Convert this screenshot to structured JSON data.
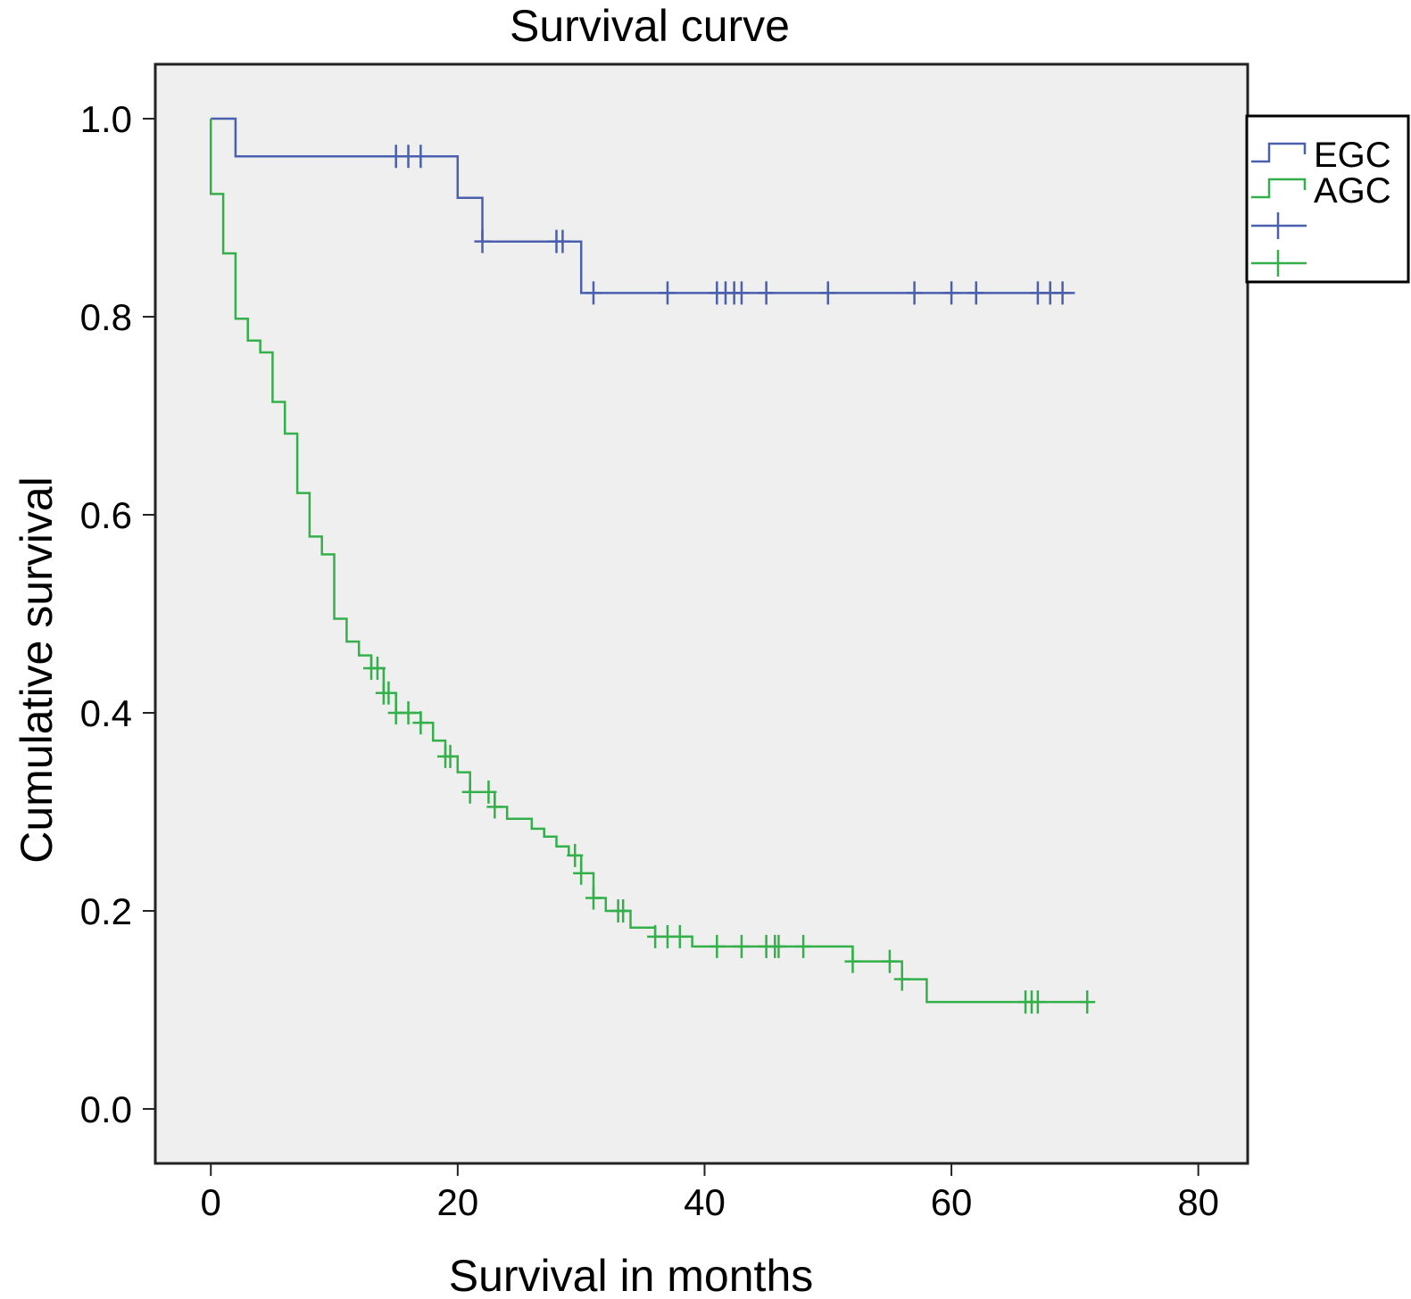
{
  "chart_data": {
    "type": "line",
    "subtype": "kaplan-meier-step",
    "title": "Survival curve",
    "xlabel": "Survival in months",
    "ylabel": "Cumulative survival",
    "xlim": [
      -4.5,
      84
    ],
    "ylim": [
      -0.055,
      1.055
    ],
    "xticks": [
      0,
      20,
      40,
      60,
      80
    ],
    "xtick_labels": [
      "0",
      "20",
      "40",
      "60",
      "80"
    ],
    "yticks": [
      0.0,
      0.2,
      0.4,
      0.6,
      0.8,
      1.0
    ],
    "ytick_labels": [
      "0.0",
      "0.2",
      "0.4",
      "0.6",
      "0.8",
      "1.0"
    ],
    "grid": false,
    "plot_background": "#efefef",
    "legend_position": "right",
    "series": [
      {
        "name": "EGC",
        "color": "#4a5fae",
        "points": [
          [
            0,
            1.0
          ],
          [
            2,
            1.0
          ],
          [
            2,
            0.962
          ],
          [
            20,
            0.962
          ],
          [
            20,
            0.92
          ],
          [
            22,
            0.92
          ],
          [
            22,
            0.876
          ],
          [
            30,
            0.876
          ],
          [
            30,
            0.824
          ],
          [
            70,
            0.824
          ]
        ],
        "censored": [
          [
            15,
            0.962
          ],
          [
            16,
            0.962
          ],
          [
            17,
            0.962
          ],
          [
            22,
            0.876
          ],
          [
            28,
            0.876
          ],
          [
            28.5,
            0.876
          ],
          [
            31,
            0.824
          ],
          [
            37,
            0.824
          ],
          [
            41,
            0.824
          ],
          [
            41.7,
            0.824
          ],
          [
            42.4,
            0.824
          ],
          [
            43,
            0.824
          ],
          [
            45,
            0.824
          ],
          [
            50,
            0.824
          ],
          [
            57,
            0.824
          ],
          [
            60,
            0.824
          ],
          [
            62,
            0.824
          ],
          [
            67,
            0.824
          ],
          [
            68,
            0.824
          ],
          [
            69,
            0.824
          ]
        ]
      },
      {
        "name": "AGC",
        "color": "#33b04a",
        "points": [
          [
            0,
            1.0
          ],
          [
            0,
            0.924
          ],
          [
            1,
            0.924
          ],
          [
            1,
            0.864
          ],
          [
            2,
            0.864
          ],
          [
            2,
            0.798
          ],
          [
            3,
            0.798
          ],
          [
            3,
            0.776
          ],
          [
            4,
            0.776
          ],
          [
            4,
            0.764
          ],
          [
            5,
            0.764
          ],
          [
            5,
            0.714
          ],
          [
            6,
            0.714
          ],
          [
            6,
            0.682
          ],
          [
            7,
            0.682
          ],
          [
            7,
            0.622
          ],
          [
            8,
            0.622
          ],
          [
            8,
            0.578
          ],
          [
            9,
            0.578
          ],
          [
            9,
            0.56
          ],
          [
            10,
            0.56
          ],
          [
            10,
            0.495
          ],
          [
            11,
            0.495
          ],
          [
            11,
            0.472
          ],
          [
            12,
            0.472
          ],
          [
            12,
            0.458
          ],
          [
            13,
            0.458
          ],
          [
            13,
            0.445
          ],
          [
            14,
            0.445
          ],
          [
            14,
            0.42
          ],
          [
            15,
            0.42
          ],
          [
            15,
            0.4
          ],
          [
            17,
            0.4
          ],
          [
            17,
            0.39
          ],
          [
            18,
            0.39
          ],
          [
            18,
            0.372
          ],
          [
            19,
            0.372
          ],
          [
            19,
            0.356
          ],
          [
            20,
            0.356
          ],
          [
            20,
            0.34
          ],
          [
            21,
            0.34
          ],
          [
            21,
            0.32
          ],
          [
            23,
            0.32
          ],
          [
            23,
            0.305
          ],
          [
            24,
            0.305
          ],
          [
            24,
            0.293
          ],
          [
            26,
            0.293
          ],
          [
            26,
            0.283
          ],
          [
            27,
            0.283
          ],
          [
            27,
            0.275
          ],
          [
            28,
            0.275
          ],
          [
            28,
            0.265
          ],
          [
            29,
            0.265
          ],
          [
            29,
            0.256
          ],
          [
            30,
            0.256
          ],
          [
            30,
            0.238
          ],
          [
            31,
            0.238
          ],
          [
            31,
            0.213
          ],
          [
            32,
            0.213
          ],
          [
            32,
            0.2
          ],
          [
            34,
            0.2
          ],
          [
            34,
            0.183
          ],
          [
            36,
            0.183
          ],
          [
            36,
            0.174
          ],
          [
            39,
            0.174
          ],
          [
            39,
            0.164
          ],
          [
            52,
            0.164
          ],
          [
            52,
            0.149
          ],
          [
            56,
            0.149
          ],
          [
            56,
            0.131
          ],
          [
            58,
            0.131
          ],
          [
            58,
            0.108
          ],
          [
            71,
            0.108
          ]
        ],
        "censored": [
          [
            13,
            0.445
          ],
          [
            13.5,
            0.445
          ],
          [
            14,
            0.42
          ],
          [
            14.4,
            0.42
          ],
          [
            15,
            0.4
          ],
          [
            16,
            0.4
          ],
          [
            17,
            0.39
          ],
          [
            19,
            0.356
          ],
          [
            19.4,
            0.356
          ],
          [
            21,
            0.32
          ],
          [
            22.5,
            0.32
          ],
          [
            23,
            0.305
          ],
          [
            29.5,
            0.256
          ],
          [
            30,
            0.238
          ],
          [
            31,
            0.213
          ],
          [
            33,
            0.2
          ],
          [
            33.4,
            0.2
          ],
          [
            36,
            0.174
          ],
          [
            37,
            0.174
          ],
          [
            38,
            0.174
          ],
          [
            41,
            0.164
          ],
          [
            43,
            0.164
          ],
          [
            45,
            0.164
          ],
          [
            45.7,
            0.164
          ],
          [
            46,
            0.164
          ],
          [
            48,
            0.164
          ],
          [
            52,
            0.149
          ],
          [
            55,
            0.149
          ],
          [
            56,
            0.131
          ],
          [
            66,
            0.108
          ],
          [
            66.5,
            0.108
          ],
          [
            67,
            0.108
          ],
          [
            71,
            0.108
          ]
        ]
      }
    ],
    "legend_entries": [
      "EGC",
      "AGC",
      "",
      ""
    ]
  }
}
